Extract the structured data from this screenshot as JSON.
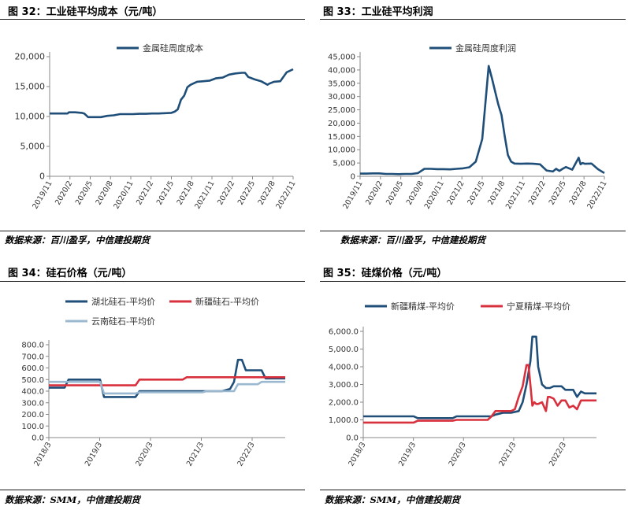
{
  "panels": [
    {
      "title": "图 32：工业硅平均成本（元/吨）",
      "source": "数据来源：百川盈孚，中信建投期货"
    },
    {
      "title": "图 33：工业硅平均利润",
      "source": "数据来源：百川盈孚，中信建投期货"
    },
    {
      "title": "图 34：硅石价格（元/吨）",
      "source": "数据来源：SMM，中信建投期货"
    },
    {
      "title": "图 35：硅煤价格（元/吨）",
      "source": "数据来源：SMM，中信建投期货"
    }
  ],
  "chart_data": [
    {
      "type": "line",
      "title": "",
      "xlabel": "",
      "ylabel": "",
      "x_ticks": [
        "2019/11",
        "2020/2",
        "2020/5",
        "2020/8",
        "2020/11",
        "2021/2",
        "2021/5",
        "2021/8",
        "2021/11",
        "2022/2",
        "2022/5",
        "2022/8",
        "2022/11"
      ],
      "y_ticks": [
        "0",
        "5,000",
        "10,000",
        "15,000",
        "20,000"
      ],
      "ylim": [
        0,
        20000
      ],
      "xlim": [
        0,
        38
      ],
      "legend": "top",
      "series": [
        {
          "name": "金属硅周度成本",
          "color": "#1f4e79",
          "x": [
            0,
            1,
            2,
            2.8,
            3,
            4,
            5,
            5.4,
            6,
            7,
            7.6,
            8,
            9,
            10,
            11,
            12,
            13,
            14,
            15,
            16,
            17,
            18,
            19,
            19.5,
            20,
            20.5,
            21,
            21.5,
            22,
            23,
            24,
            25,
            26,
            27,
            28,
            29,
            30,
            30.5,
            31,
            32,
            33,
            34,
            34.3,
            35,
            36,
            37,
            38
          ],
          "y": [
            10500,
            10500,
            10500,
            10500,
            10700,
            10700,
            10600,
            10500,
            9900,
            9900,
            9900,
            9900,
            10100,
            10200,
            10400,
            10400,
            10400,
            10450,
            10450,
            10500,
            10500,
            10550,
            10600,
            10800,
            11200,
            12800,
            13500,
            14900,
            15300,
            15800,
            15900,
            16000,
            16400,
            16500,
            17000,
            17200,
            17300,
            17300,
            16600,
            16200,
            15900,
            15300,
            15500,
            15800,
            15900,
            17400,
            17900
          ]
        }
      ]
    },
    {
      "type": "line",
      "title": "",
      "xlabel": "",
      "ylabel": "",
      "x_ticks": [
        "2019/11",
        "2020/2",
        "2020/5",
        "2020/8",
        "2020/11",
        "2021/2",
        "2021/5",
        "2021/8",
        "2021/11",
        "2022/2",
        "2022/5",
        "2022/8",
        "2022/11"
      ],
      "y_ticks": [
        "0",
        "5,000",
        "10,000",
        "15,000",
        "20,000",
        "25,000",
        "30,000",
        "35,000",
        "40,000",
        "45,000"
      ],
      "ylim": [
        0,
        45000
      ],
      "xlim": [
        0,
        38
      ],
      "legend": "top",
      "series": [
        {
          "name": "金属硅周度利润",
          "color": "#1f4e79",
          "x": [
            0,
            1,
            2,
            3,
            4,
            5,
            6,
            7,
            8,
            9,
            10,
            11,
            12,
            13,
            14,
            15,
            16,
            17,
            18,
            19,
            20,
            20.5,
            21,
            21.5,
            22,
            22.5,
            23,
            23.5,
            24,
            25,
            26,
            27,
            28,
            29,
            30,
            30.5,
            31,
            31.5,
            32,
            33,
            34,
            34.3,
            34.6,
            35,
            36,
            37,
            38
          ],
          "y": [
            1000,
            1000,
            1100,
            1100,
            900,
            900,
            800,
            900,
            900,
            1200,
            2800,
            2800,
            2700,
            2700,
            2600,
            2800,
            3000,
            3400,
            5500,
            14000,
            41500,
            37000,
            32000,
            27000,
            23000,
            15000,
            8000,
            5500,
            4800,
            4700,
            4800,
            4700,
            4500,
            2200,
            1800,
            2800,
            2000,
            2800,
            3500,
            2500,
            7000,
            4500,
            5000,
            4700,
            4800,
            2700,
            1200
          ]
        }
      ]
    },
    {
      "type": "line",
      "title": "",
      "xlabel": "",
      "ylabel": "",
      "x_ticks": [
        "2018/3",
        "2019/3",
        "2020/3",
        "2021/3",
        "2022/3"
      ],
      "y_ticks": [
        "0.0",
        "100.0",
        "200.0",
        "300.0",
        "400.0",
        "500.0",
        "600.0",
        "700.0",
        "800.0"
      ],
      "ylim": [
        0,
        800
      ],
      "xlim": [
        0,
        60
      ],
      "legend": "top",
      "series": [
        {
          "name": "湖北硅石-平均价",
          "color": "#1f4e79",
          "x": [
            0,
            4,
            5,
            13,
            14,
            22,
            23,
            44,
            46,
            47,
            48,
            49,
            50,
            54,
            55,
            60
          ],
          "y": [
            430,
            430,
            500,
            500,
            350,
            350,
            400,
            400,
            420,
            480,
            670,
            670,
            580,
            580,
            510,
            510
          ]
        },
        {
          "name": "新疆硅石-平均价",
          "color": "#d9303e",
          "x": [
            0,
            22,
            23,
            34,
            35,
            60
          ],
          "y": [
            450,
            450,
            500,
            500,
            520,
            520
          ]
        },
        {
          "name": "云南硅石-平均价",
          "color": "#9ab8d0",
          "x": [
            0,
            13,
            14,
            22,
            23,
            39,
            40,
            41,
            47,
            48,
            53,
            54,
            60
          ],
          "y": [
            480,
            480,
            380,
            380,
            390,
            390,
            400,
            400,
            400,
            460,
            460,
            480,
            480
          ]
        }
      ]
    },
    {
      "type": "line",
      "title": "",
      "xlabel": "",
      "ylabel": "",
      "x_ticks": [
        "2018/3",
        "2019/3",
        "2020/3",
        "2021/3",
        "2022/3"
      ],
      "y_ticks": [
        "0.0",
        "1,000.0",
        "2,000.0",
        "3,000.0",
        "4,000.0",
        "5,000.0",
        "6,000.0"
      ],
      "ylim": [
        0,
        6000
      ],
      "xlim": [
        0,
        60
      ],
      "legend": "top",
      "series": [
        {
          "name": "新疆精煤-平均价",
          "color": "#1f4e79",
          "x": [
            0,
            13,
            14,
            23,
            24,
            33,
            34,
            36,
            38,
            40,
            41,
            42,
            43,
            43.5,
            44,
            44.5,
            45,
            46,
            47,
            48,
            49,
            51,
            52,
            54,
            55,
            56,
            57,
            60
          ],
          "y": [
            1200,
            1200,
            1100,
            1100,
            1200,
            1200,
            1300,
            1400,
            1400,
            1500,
            2000,
            3000,
            4300,
            5700,
            5700,
            5700,
            4000,
            3000,
            2800,
            2800,
            2900,
            2900,
            2700,
            2700,
            2300,
            2600,
            2500,
            2500
          ]
        },
        {
          "name": "宁夏精煤-平均价",
          "color": "#d9303e",
          "x": [
            0,
            13,
            14,
            23,
            24,
            32,
            33,
            34,
            38,
            39,
            40,
            41,
            42,
            42.5,
            43,
            43.5,
            44,
            44.5,
            45,
            46,
            47,
            47.5,
            48,
            49,
            50,
            51,
            52,
            53,
            54,
            55,
            56,
            57,
            58,
            60
          ],
          "y": [
            850,
            850,
            950,
            950,
            1000,
            1000,
            1200,
            1500,
            1500,
            1600,
            2300,
            2900,
            4100,
            4100,
            3000,
            1800,
            2000,
            1900,
            1900,
            2000,
            1500,
            2300,
            2300,
            2200,
            1800,
            2100,
            2100,
            1700,
            1800,
            1600,
            2100,
            2100,
            2100,
            2100
          ]
        }
      ]
    }
  ]
}
